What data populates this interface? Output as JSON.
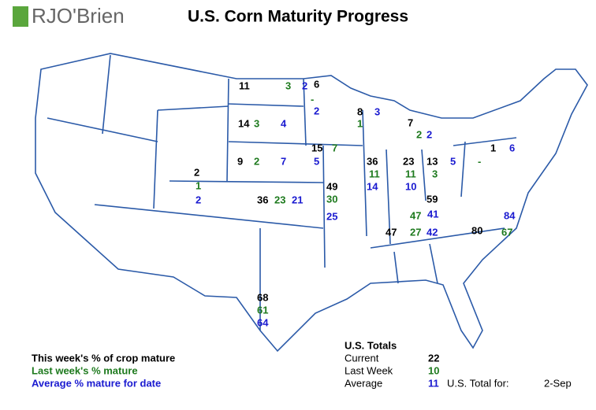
{
  "logo": "RJO'Brien",
  "title": "U.S. Corn Maturity Progress",
  "legend": [
    {
      "text": "This week's % of crop mature",
      "color": "#000000"
    },
    {
      "text": "Last week's % mature",
      "color": "#1e7a1e"
    },
    {
      "text": "Average % mature for date",
      "color": "#1a1ad0"
    }
  ],
  "states": [
    {
      "current": 11,
      "last_week": 3,
      "average": 2
    },
    {
      "current": 6,
      "last_week": "-",
      "average": 2
    },
    {
      "current": 14,
      "last_week": 3,
      "average": 4
    },
    {
      "current": 8,
      "last_week": 1,
      "average": 3
    },
    {
      "current": 7,
      "last_week": 2,
      "average": 2
    },
    {
      "current": 9,
      "last_week": 2,
      "average": 7
    },
    {
      "current": 15,
      "last_week": 7,
      "average": 5
    },
    {
      "current": 2,
      "last_week": 1,
      "average": 2
    },
    {
      "current": 36,
      "last_week": 23,
      "average": 21
    },
    {
      "current": 49,
      "last_week": 30,
      "average": 25
    },
    {
      "current": 36,
      "last_week": 11,
      "average": 14
    },
    {
      "current": 23,
      "last_week": 11,
      "average": 10
    },
    {
      "current": 13,
      "last_week": 3,
      "average": 5
    },
    {
      "current": 1,
      "last_week": "-",
      "average": 6
    },
    {
      "current": 59,
      "last_week": 47,
      "average": 41
    },
    {
      "current": 47,
      "last_week": 27,
      "average": 42
    },
    {
      "current": 80,
      "last_week": 67,
      "average": 84
    },
    {
      "current": 68,
      "last_week": 61,
      "average": 64
    }
  ],
  "totals": {
    "title": "U.S. Totals",
    "rows": [
      {
        "label": "Current",
        "value": 22
      },
      {
        "label": "Last Week",
        "value": 10
      },
      {
        "label": "Average",
        "value": 11
      }
    ],
    "date_label": "U.S. Total for:",
    "date": "2-Sep"
  }
}
